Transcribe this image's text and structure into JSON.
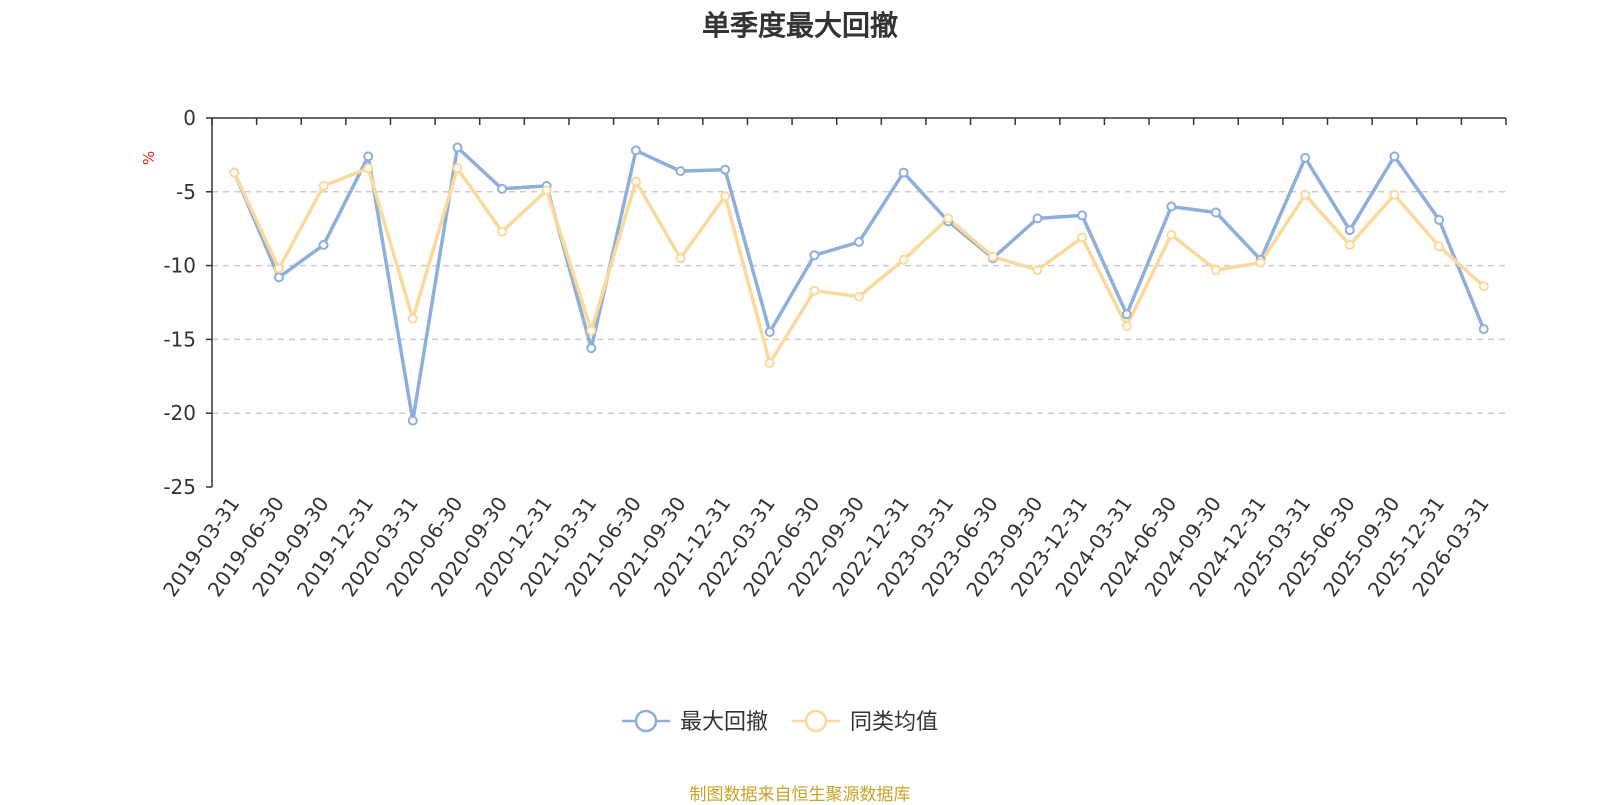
{
  "chart_data": {
    "type": "line",
    "title": "单季度最大回撤",
    "ylabel": "%",
    "xlabel": "",
    "categories": [
      "2019-03-31",
      "2019-06-30",
      "2019-09-30",
      "2019-12-31",
      "2020-03-31",
      "2020-06-30",
      "2020-09-30",
      "2020-12-31",
      "2021-03-31",
      "2021-06-30",
      "2021-09-30",
      "2021-12-31",
      "2022-03-31",
      "2022-06-30",
      "2022-09-30",
      "2022-12-31",
      "2023-03-31",
      "2023-06-30",
      "2023-09-30",
      "2023-12-31",
      "2024-03-31",
      "2024-06-30",
      "2024-09-30",
      "2024-12-31",
      "2025-03-31",
      "2025-06-30",
      "2025-09-30",
      "2025-12-31",
      "2026-03-31"
    ],
    "ylim": [
      -25,
      0
    ],
    "yticks": [
      0,
      -5,
      -10,
      -15,
      -20,
      -25
    ],
    "grid": true,
    "legend_position": "bottom",
    "series": [
      {
        "name": "最大回撤",
        "color": "#8eaedb",
        "values": [
          -3.7,
          -10.8,
          -8.6,
          -2.6,
          -20.5,
          -2.0,
          -4.8,
          -4.6,
          -15.6,
          -2.2,
          -3.6,
          -3.5,
          -14.5,
          -9.3,
          -8.4,
          -3.7,
          -7.0,
          -9.5,
          -6.8,
          -6.6,
          -13.3,
          -6.0,
          -6.4,
          -9.6,
          -2.7,
          -7.6,
          -2.6,
          -6.9,
          -14.3
        ]
      },
      {
        "name": "同类均值",
        "color": "#fbd99b",
        "values": [
          -3.7,
          -10.2,
          -4.6,
          -3.4,
          -13.6,
          -3.4,
          -7.7,
          -4.9,
          -14.4,
          -4.3,
          -9.5,
          -5.3,
          -16.6,
          -11.7,
          -12.1,
          -9.6,
          -6.8,
          -9.4,
          -10.3,
          -8.1,
          -14.1,
          -7.9,
          -10.3,
          -9.8,
          -5.2,
          -8.6,
          -5.2,
          -8.7,
          -11.4
        ]
      }
    ]
  },
  "footer": {
    "text": "制图数据来自恒生聚源数据库",
    "color": "#c9a227"
  }
}
